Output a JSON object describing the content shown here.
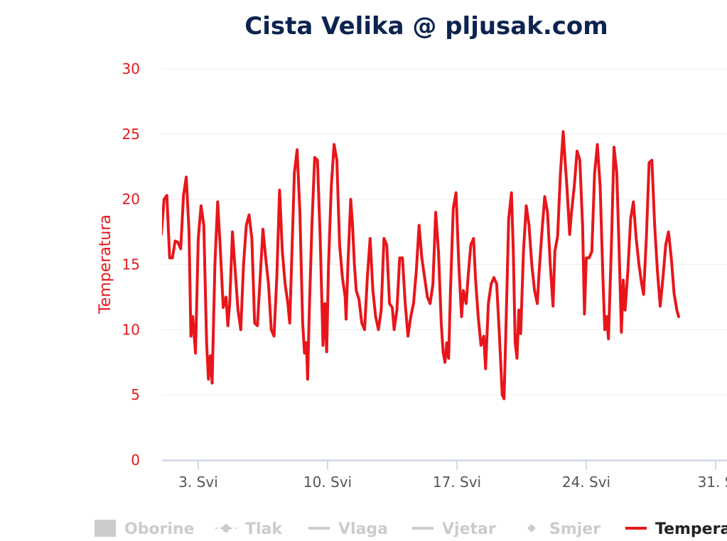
{
  "chart_data": {
    "type": "line",
    "title": "Cista Velika @ pljusak.com",
    "ylabel": "Temperatura",
    "xlabel": "",
    "ylim": [
      0,
      30
    ],
    "yticks": [
      "0",
      "5",
      "10",
      "15",
      "20",
      "25",
      "30"
    ],
    "xlim": [
      0.6,
      31.4
    ],
    "xticks": [
      {
        "value": 3,
        "label": "3. Svi"
      },
      {
        "value": 10,
        "label": "10. Svi"
      },
      {
        "value": 17,
        "label": "17. Svi"
      },
      {
        "value": 24,
        "label": "24. Svi"
      },
      {
        "value": 31,
        "label": "31. S"
      }
    ],
    "grid": true,
    "legend_position": "bottom",
    "legend": [
      {
        "name": "Oborine",
        "symbol": "rect",
        "active": false
      },
      {
        "name": "Tlak",
        "symbol": "dashed-diamond",
        "active": false
      },
      {
        "name": "Vlaga",
        "symbol": "line",
        "active": false
      },
      {
        "name": "Vjetar",
        "symbol": "line",
        "active": false
      },
      {
        "name": "Smjer",
        "symbol": "diamond",
        "active": false
      },
      {
        "name": "Temperat",
        "symbol": "line",
        "active": true
      }
    ],
    "series": [
      {
        "name": "Temperatura",
        "color": "#e8161b",
        "points": [
          [
            1.0,
            17.3
          ],
          [
            1.15,
            20.0
          ],
          [
            1.3,
            20.3
          ],
          [
            1.45,
            15.5
          ],
          [
            1.6,
            15.5
          ],
          [
            1.75,
            16.8
          ],
          [
            1.9,
            16.7
          ],
          [
            2.05,
            16.2
          ],
          [
            2.2,
            20.3
          ],
          [
            2.35,
            21.7
          ],
          [
            2.5,
            17.5
          ],
          [
            2.6,
            9.5
          ],
          [
            2.7,
            11.0
          ],
          [
            2.85,
            8.2
          ],
          [
            3.0,
            17.0
          ],
          [
            3.15,
            19.5
          ],
          [
            3.3,
            18.0
          ],
          [
            3.45,
            9.0
          ],
          [
            3.55,
            6.2
          ],
          [
            3.65,
            8.0
          ],
          [
            3.75,
            5.9
          ],
          [
            3.9,
            15.0
          ],
          [
            4.05,
            19.8
          ],
          [
            4.2,
            16.0
          ],
          [
            4.35,
            11.7
          ],
          [
            4.5,
            12.5
          ],
          [
            4.6,
            10.3
          ],
          [
            4.7,
            12.0
          ],
          [
            4.85,
            17.5
          ],
          [
            5.0,
            14.5
          ],
          [
            5.15,
            11.5
          ],
          [
            5.3,
            10.0
          ],
          [
            5.45,
            15.0
          ],
          [
            5.6,
            18.0
          ],
          [
            5.75,
            18.8
          ],
          [
            5.9,
            17.0
          ],
          [
            6.05,
            10.5
          ],
          [
            6.2,
            10.3
          ],
          [
            6.35,
            14.0
          ],
          [
            6.5,
            17.7
          ],
          [
            6.65,
            15.5
          ],
          [
            6.8,
            13.5
          ],
          [
            6.95,
            10.0
          ],
          [
            7.1,
            9.5
          ],
          [
            7.25,
            14.0
          ],
          [
            7.4,
            20.7
          ],
          [
            7.55,
            16.0
          ],
          [
            7.7,
            13.5
          ],
          [
            7.85,
            12.0
          ],
          [
            7.95,
            10.5
          ],
          [
            8.05,
            15.0
          ],
          [
            8.2,
            22.0
          ],
          [
            8.35,
            23.8
          ],
          [
            8.5,
            19.0
          ],
          [
            8.65,
            10.5
          ],
          [
            8.75,
            8.2
          ],
          [
            8.85,
            9.0
          ],
          [
            8.92,
            6.2
          ],
          [
            9.0,
            11.0
          ],
          [
            9.15,
            18.0
          ],
          [
            9.3,
            23.2
          ],
          [
            9.45,
            23.0
          ],
          [
            9.6,
            17.0
          ],
          [
            9.75,
            8.8
          ],
          [
            9.85,
            12.0
          ],
          [
            9.95,
            8.3
          ],
          [
            10.05,
            15.0
          ],
          [
            10.2,
            21.0
          ],
          [
            10.35,
            24.2
          ],
          [
            10.5,
            23.0
          ],
          [
            10.65,
            16.5
          ],
          [
            10.8,
            14.0
          ],
          [
            10.95,
            12.5
          ],
          [
            11.0,
            10.8
          ],
          [
            11.1,
            15.0
          ],
          [
            11.25,
            20.0
          ],
          [
            11.35,
            18.0
          ],
          [
            11.45,
            15.0
          ],
          [
            11.55,
            13.0
          ],
          [
            11.7,
            12.3
          ],
          [
            11.85,
            10.5
          ],
          [
            12.0,
            10.0
          ],
          [
            12.15,
            14.0
          ],
          [
            12.3,
            17.0
          ],
          [
            12.45,
            13.0
          ],
          [
            12.6,
            11.0
          ],
          [
            12.75,
            10.0
          ],
          [
            12.9,
            11.5
          ],
          [
            13.05,
            17.0
          ],
          [
            13.2,
            16.5
          ],
          [
            13.35,
            12.0
          ],
          [
            13.5,
            11.7
          ],
          [
            13.6,
            10.0
          ],
          [
            13.75,
            11.5
          ],
          [
            13.9,
            15.5
          ],
          [
            14.05,
            15.5
          ],
          [
            14.2,
            12.0
          ],
          [
            14.35,
            9.5
          ],
          [
            14.5,
            11.0
          ],
          [
            14.65,
            12.0
          ],
          [
            14.8,
            14.5
          ],
          [
            14.95,
            18.0
          ],
          [
            15.1,
            15.5
          ],
          [
            15.25,
            14.0
          ],
          [
            15.4,
            12.5
          ],
          [
            15.55,
            12.0
          ],
          [
            15.7,
            13.5
          ],
          [
            15.85,
            19.0
          ],
          [
            16.0,
            16.0
          ],
          [
            16.15,
            10.5
          ],
          [
            16.25,
            8.3
          ],
          [
            16.35,
            7.5
          ],
          [
            16.45,
            9.0
          ],
          [
            16.55,
            7.8
          ],
          [
            16.65,
            13.0
          ],
          [
            16.8,
            19.3
          ],
          [
            16.95,
            20.5
          ],
          [
            17.1,
            15.0
          ],
          [
            17.25,
            11.0
          ],
          [
            17.35,
            13.0
          ],
          [
            17.5,
            12.0
          ],
          [
            17.6,
            14.0
          ],
          [
            17.75,
            16.5
          ],
          [
            17.9,
            17.0
          ],
          [
            18.0,
            14.0
          ],
          [
            18.15,
            11.0
          ],
          [
            18.3,
            8.8
          ],
          [
            18.45,
            9.5
          ],
          [
            18.55,
            7.0
          ],
          [
            18.7,
            12.0
          ],
          [
            18.85,
            13.5
          ],
          [
            19.0,
            14.0
          ],
          [
            19.15,
            13.5
          ],
          [
            19.3,
            9.5
          ],
          [
            19.45,
            5.0
          ],
          [
            19.55,
            4.7
          ],
          [
            19.65,
            10.0
          ],
          [
            19.8,
            18.5
          ],
          [
            19.95,
            20.5
          ],
          [
            20.05,
            16.0
          ],
          [
            20.15,
            9.0
          ],
          [
            20.25,
            7.8
          ],
          [
            20.35,
            11.5
          ],
          [
            20.45,
            9.7
          ],
          [
            20.6,
            16.0
          ],
          [
            20.75,
            19.5
          ],
          [
            20.9,
            18.0
          ],
          [
            21.05,
            15.0
          ],
          [
            21.2,
            13.0
          ],
          [
            21.35,
            12.0
          ],
          [
            21.45,
            14.5
          ],
          [
            21.6,
            17.5
          ],
          [
            21.75,
            20.2
          ],
          [
            21.9,
            19.0
          ],
          [
            22.05,
            15.0
          ],
          [
            22.2,
            11.8
          ],
          [
            22.3,
            16.0
          ],
          [
            22.45,
            17.2
          ],
          [
            22.6,
            22.0
          ],
          [
            22.75,
            25.2
          ],
          [
            22.85,
            23.0
          ],
          [
            22.95,
            21.0
          ],
          [
            23.1,
            17.3
          ],
          [
            23.2,
            19.0
          ],
          [
            23.35,
            21.0
          ],
          [
            23.5,
            23.7
          ],
          [
            23.65,
            23.0
          ],
          [
            23.8,
            18.0
          ],
          [
            23.9,
            11.2
          ],
          [
            24.0,
            15.5
          ],
          [
            24.15,
            15.5
          ],
          [
            24.3,
            16.0
          ],
          [
            24.45,
            22.0
          ],
          [
            24.6,
            24.2
          ],
          [
            24.75,
            21.0
          ],
          [
            24.9,
            14.0
          ],
          [
            25.0,
            10.0
          ],
          [
            25.1,
            11.0
          ],
          [
            25.2,
            9.3
          ],
          [
            25.35,
            16.0
          ],
          [
            25.5,
            24.0
          ],
          [
            25.65,
            22.0
          ],
          [
            25.8,
            15.0
          ],
          [
            25.9,
            9.8
          ],
          [
            26.0,
            13.8
          ],
          [
            26.1,
            11.5
          ],
          [
            26.25,
            14.5
          ],
          [
            26.4,
            18.5
          ],
          [
            26.55,
            19.8
          ],
          [
            26.7,
            17.0
          ],
          [
            26.85,
            15.0
          ],
          [
            27.0,
            13.5
          ],
          [
            27.1,
            12.7
          ],
          [
            27.25,
            17.0
          ],
          [
            27.4,
            22.8
          ],
          [
            27.55,
            23.0
          ],
          [
            27.7,
            18.0
          ],
          [
            27.85,
            14.5
          ],
          [
            28.0,
            11.8
          ],
          [
            28.15,
            14.0
          ],
          [
            28.3,
            16.5
          ],
          [
            28.45,
            17.5
          ],
          [
            28.6,
            15.5
          ],
          [
            28.75,
            12.8
          ],
          [
            28.9,
            11.5
          ],
          [
            29.0,
            11.0
          ]
        ]
      }
    ]
  }
}
